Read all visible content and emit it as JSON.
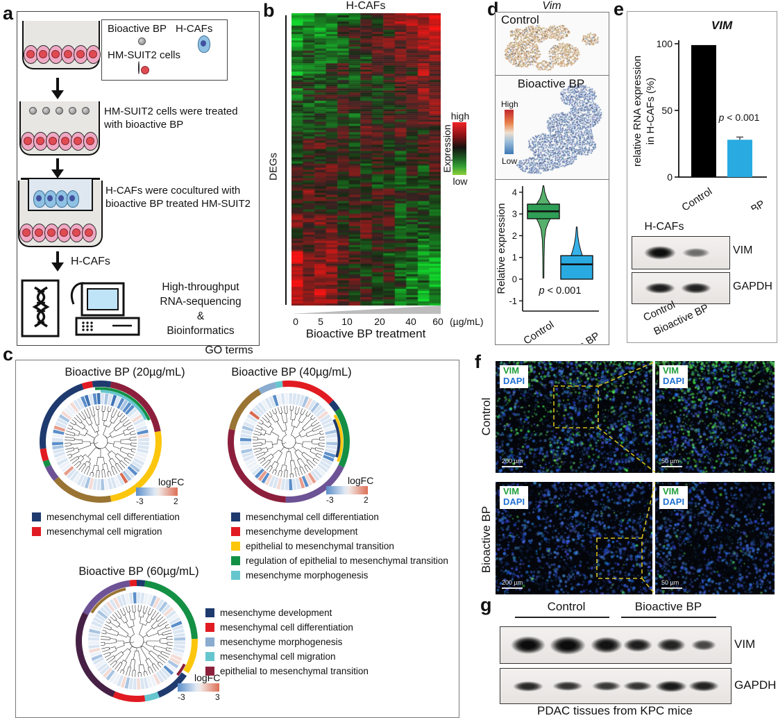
{
  "palette": {
    "navy": "#1e3a6e",
    "red": "#e11b22",
    "yellow": "#fcc60d",
    "green": "#149044",
    "teal": "#66c6ce",
    "purple": "#6d5295",
    "brown": "#9a7433",
    "maroon": "#8c1f3c",
    "plum": "#472145",
    "steel": "#8aaccf",
    "bar_blue": "#29abe2",
    "violin_green": "#57b06c",
    "violin_green_box": "#2f9e56",
    "violin_blue": "#37b1e8",
    "violin_blue_box": "#29abe2",
    "vim_green": "#1f9e3c",
    "dapi_blue": "#1f6fd0",
    "dash_yellow": "#d8c21f"
  },
  "panel_a": {
    "label": "a",
    "legend": {
      "row1_left": "Bioactive BP",
      "row1_right": "H-CAFs",
      "row2": "HM-SUIT2 cells"
    },
    "step2": "HM-SUIT2 cells were treated with bioactive BP",
    "step3": "H-CAFs were cocultured with bioactive BP treated HM-SUIT2",
    "arrow_label": "H-CAFs",
    "outcome": [
      "High-throughput",
      "RNA-sequencing",
      "&",
      "Bioinformatics"
    ]
  },
  "panel_b": {
    "label": "b",
    "title": "H-CAFs",
    "y_axis": "DEGs",
    "colorbar": {
      "label": "Expression",
      "high": "high",
      "low": "low"
    },
    "x_ticks": [
      "0",
      "5",
      "10",
      "20",
      "40",
      "60"
    ],
    "x_unit": "(µg/mL)",
    "x_title": "Bioactive BP treatment"
  },
  "panel_c": {
    "label": "c",
    "title": "GO terms",
    "plots": [
      {
        "title": "Bioactive BP (20µg/mL)",
        "logfc_label": "logFC",
        "logfc_min": "-3",
        "logfc_max": "2",
        "legend": [
          [
            "navy",
            "mesenchymal cell differentiation"
          ],
          [
            "red",
            "mesenchymal cell migration"
          ]
        ],
        "outer": [
          [
            "navy",
            263,
            342
          ],
          [
            "red",
            342,
            352
          ],
          [
            "navy",
            352,
            370
          ],
          [
            "maroon",
            370,
            440
          ],
          [
            "yellow",
            440,
            530
          ],
          [
            "brown",
            530,
            590
          ],
          [
            "purple",
            590,
            605
          ],
          [
            "green",
            605,
            611
          ],
          [
            "red",
            611,
            623
          ]
        ],
        "ring2": [
          [
            "green",
            354,
            426,
            0
          ],
          [
            "teal",
            360,
            424,
            1
          ]
        ],
        "seed": 7,
        "pink": 0.1,
        "accent": "top-blue"
      },
      {
        "title": "Bioactive BP (40µg/mL)",
        "logfc_label": "logFC",
        "logfc_min": "-3",
        "logfc_max": "2",
        "legend": [
          [
            "navy",
            "mesenchymal cell differentiation"
          ],
          [
            "red",
            "mesenchyme development"
          ],
          [
            "yellow",
            "epithelial to mesenchymal transition"
          ],
          [
            "green",
            "regulation of epithelial to mesenchymal transition"
          ],
          [
            "teal",
            "mesenchyme morphogenesis"
          ]
        ],
        "outer": [
          [
            "teal",
            347,
            354
          ],
          [
            "red",
            354,
            407
          ],
          [
            "navy",
            407,
            417
          ],
          [
            "green",
            417,
            475
          ],
          [
            "purple",
            475,
            543
          ],
          [
            "maroon",
            543,
            642
          ],
          [
            "brown",
            642,
            690
          ],
          [
            "steel",
            690,
            707
          ]
        ],
        "ring2": [
          [
            "yellow",
            420,
            472,
            0
          ],
          [
            "navy",
            424,
            468,
            1
          ]
        ],
        "seed": 11,
        "pink": 0.14,
        "accent": ""
      },
      {
        "title": "Bioactive BP (60µg/mL)",
        "logfc_label": "logFC",
        "logfc_min": "-3",
        "logfc_max": "3",
        "legend": [
          [
            "navy",
            "mesenchyme development"
          ],
          [
            "red",
            "mesenchymal cell differentiation"
          ],
          [
            "steel",
            "mesenchyme morphogenesis"
          ],
          [
            "teal",
            "mesenchymal cell migration"
          ],
          [
            "maroon",
            "epithelial to mesenchymal transition"
          ]
        ],
        "outer": [
          [
            "red",
            353,
            360
          ],
          [
            "navy",
            360,
            368
          ],
          [
            "green",
            368,
            448
          ],
          [
            "yellow",
            448,
            482
          ],
          [
            "navy",
            485,
            518
          ],
          [
            "teal",
            518,
            532
          ],
          [
            "red",
            532,
            563
          ],
          [
            "plum",
            563,
            658
          ],
          [
            "purple",
            658,
            713
          ]
        ],
        "ring2": [
          [
            "brown",
            662,
            708,
            0
          ],
          [
            "maroon",
            476,
            490,
            0
          ]
        ],
        "seed": 23,
        "pink": 0.22,
        "accent": ""
      }
    ]
  },
  "panel_d": {
    "label": "d",
    "title": "Vim",
    "map1": "Control",
    "map2": "Bioactive BP",
    "colorbar_high": "High",
    "colorbar_low": "Low",
    "violin": {
      "ylabel": "Relative expression",
      "ticks": [
        "4",
        "3",
        "2",
        "1",
        "0",
        "-1"
      ],
      "p": "p < 0.001",
      "categories": [
        "Control",
        "Bioactive BP"
      ],
      "green_profile": [
        [
          4.3,
          0.6
        ],
        [
          4.0,
          2
        ],
        [
          3.7,
          5
        ],
        [
          3.45,
          10
        ],
        [
          3.1,
          13
        ],
        [
          2.85,
          11
        ],
        [
          2.6,
          7
        ],
        [
          2.3,
          3.5
        ],
        [
          1.8,
          1.5
        ],
        [
          1.0,
          0.9
        ],
        [
          0.05,
          0.7
        ]
      ],
      "blue_profile": [
        [
          2.4,
          0.6
        ],
        [
          2.0,
          1.5
        ],
        [
          1.6,
          3.5
        ],
        [
          1.3,
          6
        ],
        [
          1.1,
          8
        ],
        [
          0.85,
          9.5
        ],
        [
          0.6,
          10
        ],
        [
          0.3,
          10
        ],
        [
          0.05,
          9
        ],
        [
          0.0,
          8
        ]
      ],
      "green_box": {
        "lo": 2.78,
        "hi": 3.45,
        "med": 3.12
      },
      "blue_box": {
        "lo": 0.0,
        "hi": 1.08,
        "med": 0.68
      }
    }
  },
  "panel_e": {
    "label": "e",
    "title": "VIM",
    "ylabel1": "relative RNA expression",
    "ylabel2": "in H-CAFs (%)",
    "yticks": [
      "100",
      "50",
      "0"
    ],
    "values": [
      99,
      28
    ],
    "err": [
      0,
      2
    ],
    "p": "p < 0.001",
    "categories": [
      "Control",
      "Bioactive BP"
    ],
    "blot_title": "H-CAFs",
    "blot_rows": [
      "VIM",
      "GAPDH"
    ],
    "vim_lanes": [
      0.97,
      0.55
    ],
    "gapdh_lanes": [
      0.9,
      0.88
    ]
  },
  "panel_f": {
    "label": "f",
    "rows": [
      "Control",
      "Bioactive BP"
    ],
    "marker1": "VIM",
    "marker2": "DAPI",
    "scale_left": "200 µm",
    "scale_right": "50 µm"
  },
  "panel_g": {
    "label": "g",
    "groups": [
      "Control",
      "Bioactive BP"
    ],
    "rows": [
      "VIM",
      "GAPDH"
    ],
    "caption": "PDAC tissues from KPC mice",
    "vim_lanes": [
      0.98,
      0.98,
      0.95,
      0.9,
      0.88,
      0.72
    ],
    "gapdh_lanes": [
      0.85,
      0.8,
      0.78,
      0.8,
      0.92,
      0.88
    ]
  },
  "chart_data": [
    {
      "type": "heatmap",
      "panel": "b",
      "title": "H-CAFs",
      "ylabel": "DEGs",
      "xlabel": "Bioactive BP treatment",
      "x_ticks": [
        0,
        5,
        10,
        20,
        40,
        60
      ],
      "x_unit": "µg/mL",
      "colorscale": {
        "high": "red",
        "mid": "black",
        "low": "green"
      },
      "description": "Clustered DEGs in H-CAFs across increasing bioactive BP dose; top gene cluster shifts low(green) to high(red) with dose, bottom cluster shifts high(red) to low(green)"
    },
    {
      "type": "violin",
      "panel": "d",
      "title": "Vim",
      "ylabel": "Relative expression",
      "ylim": [
        -1,
        4
      ],
      "categories": [
        "Control",
        "Bioactive BP"
      ],
      "series": [
        {
          "name": "Control",
          "median": 3.1,
          "q1": 2.8,
          "q3": 3.45,
          "min": 0,
          "max": 4.3
        },
        {
          "name": "Bioactive BP",
          "median": 0.7,
          "q1": 0.05,
          "q3": 1.1,
          "min": 0,
          "max": 2.4
        }
      ],
      "annotation": "p < 0.001"
    },
    {
      "type": "bar",
      "panel": "e",
      "title": "VIM",
      "ylabel": "relative RNA expression in H-CAFs (%)",
      "ylim": [
        0,
        100
      ],
      "categories": [
        "Control",
        "Bioactive BP"
      ],
      "values": [
        99,
        28
      ],
      "errors": [
        0,
        2
      ],
      "colors": [
        "#000000",
        "#29abe2"
      ],
      "annotation": "p < 0.001"
    },
    {
      "type": "circular-dendrogram",
      "panel": "c",
      "title": "Bioactive BP (20µg/mL)",
      "logFC_range": [
        -3,
        2
      ],
      "legend": [
        "mesenchymal cell differentiation",
        "mesenchymal cell migration"
      ]
    },
    {
      "type": "circular-dendrogram",
      "panel": "c",
      "title": "Bioactive BP (40µg/mL)",
      "logFC_range": [
        -3,
        2
      ],
      "legend": [
        "mesenchymal cell differentiation",
        "mesenchyme development",
        "epithelial to mesenchymal transition",
        "regulation of epithelial to mesenchymal transition",
        "mesenchyme morphogenesis"
      ]
    },
    {
      "type": "circular-dendrogram",
      "panel": "c",
      "title": "Bioactive BP (60µg/mL)",
      "logFC_range": [
        -3,
        3
      ],
      "legend": [
        "mesenchyme development",
        "mesenchymal cell differentiation",
        "mesenchyme morphogenesis",
        "mesenchymal cell migration",
        "epithelial to mesenchymal transition"
      ]
    }
  ]
}
